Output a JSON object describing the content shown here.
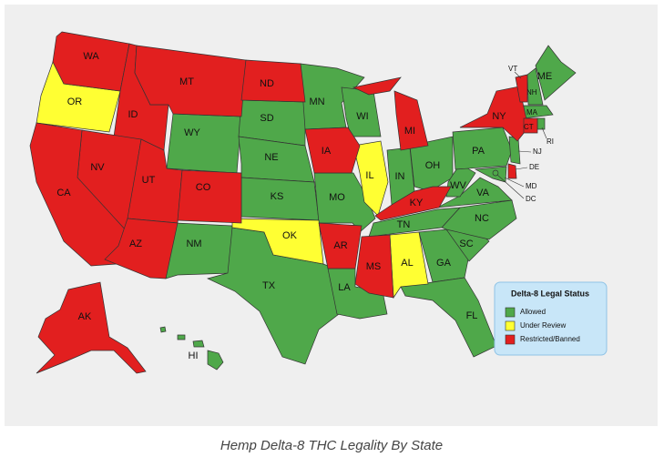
{
  "legend": {
    "title": "Delta-8 Legal Status",
    "items": [
      {
        "label": "Allowed",
        "color": "#4fa84a",
        "states": [
          "WY",
          "SD",
          "NE",
          "KS",
          "NM",
          "TX",
          "MN",
          "WI",
          "MO",
          "LA",
          "IN",
          "OH",
          "TN",
          "GA",
          "FL",
          "SC",
          "NC",
          "VA",
          "WV",
          "PA",
          "MD",
          "NJ",
          "DC",
          "RI",
          "MA",
          "NH",
          "ME",
          "HI"
        ]
      },
      {
        "label": "Under Review",
        "color": "#ffff33",
        "states": [
          "OR",
          "IL",
          "OK",
          "AL"
        ]
      },
      {
        "label": "Restricted/Banned",
        "color": "#e21f1f",
        "states": [
          "WA",
          "ID",
          "MT",
          "ND",
          "NV",
          "UT",
          "CO",
          "CA",
          "AZ",
          "AR",
          "MS",
          "MI",
          "KY",
          "NY",
          "VT",
          "CT",
          "DE",
          "IA",
          "AK"
        ]
      }
    ]
  },
  "caption": "Hemp Delta-8 THC Legality By State"
}
